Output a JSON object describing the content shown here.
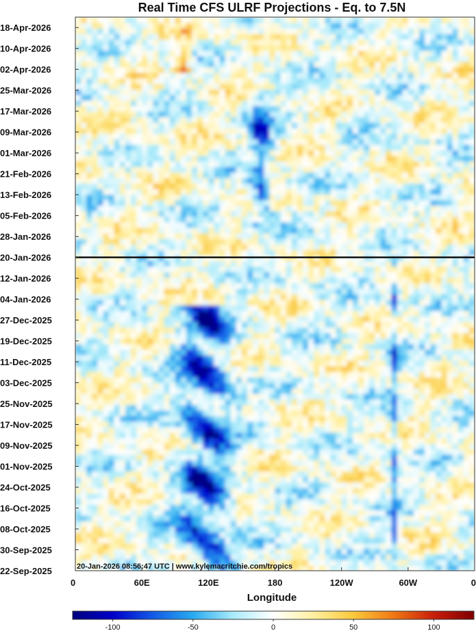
{
  "chart_data": {
    "type": "heatmap",
    "title": "Real Time CFS ULRF Projections - Eq. to 7.5N",
    "xlabel": "Longitude",
    "x_ticks": [
      "0",
      "60E",
      "120E",
      "180",
      "120W",
      "60W",
      "0"
    ],
    "x_tick_values": [
      0,
      60,
      120,
      180,
      240,
      300,
      360
    ],
    "xlim": [
      0,
      360
    ],
    "y_ticks": [
      "18-Apr-2026",
      "10-Apr-2026",
      "02-Apr-2026",
      "25-Mar-2026",
      "17-Mar-2026",
      "09-Mar-2026",
      "01-Mar-2026",
      "21-Feb-2026",
      "13-Feb-2026",
      "05-Feb-2026",
      "28-Jan-2026",
      "20-Jan-2026",
      "12-Jan-2026",
      "04-Jan-2026",
      "27-Dec-2025",
      "19-Dec-2025",
      "11-Dec-2025",
      "03-Dec-2025",
      "25-Nov-2025",
      "17-Nov-2025",
      "09-Nov-2025",
      "01-Nov-2025",
      "24-Oct-2025",
      "16-Oct-2025",
      "08-Oct-2025",
      "30-Sep-2025",
      "22-Sep-2025"
    ],
    "ylim": [
      "22-Sep-2025",
      "22-Apr-2026"
    ],
    "current_date_line": "20-Jan-2026",
    "colorbar": {
      "ticks": [
        "-100",
        "-50",
        "0",
        "50",
        "100"
      ],
      "tick_values": [
        -100,
        -50,
        0,
        50,
        100
      ],
      "range": [
        -125,
        125
      ]
    },
    "annotation": "20-Jan-2026 08:56:47 UTC | www.kylemacritchie.com/tropics",
    "colors": {
      "strong_negative": "#00007f",
      "negative": "#1f7fe0",
      "weak_negative": "#9fe6f5",
      "neutral": "#ffffff",
      "weak_positive": "#fff0a0",
      "positive": "#f5b020",
      "strong_positive": "#7f0000"
    },
    "features": [
      {
        "name": "Indian Ocean / Maritime Continent convection (negative)",
        "lon": [
          75,
          160
        ],
        "dates": [
          "22-Sep-2025",
          "01-Jan-2026"
        ],
        "value": -110
      },
      {
        "name": "South America convection (negative)",
        "lon": [
          280,
          295
        ],
        "dates": [
          "22-Sep-2025",
          "20-Jan-2026"
        ],
        "value": -70
      },
      {
        "name": "Western Pacific convection (negative)",
        "lon": [
          150,
          185
        ],
        "dates": [
          "01-Feb-2026",
          "25-Mar-2026"
        ],
        "value": -90
      },
      {
        "name": "Indian Ocean suppression (positive)",
        "lon": [
          85,
          110
        ],
        "dates": [
          "01-Apr-2026",
          "18-Apr-2026"
        ],
        "value": 80
      }
    ]
  }
}
